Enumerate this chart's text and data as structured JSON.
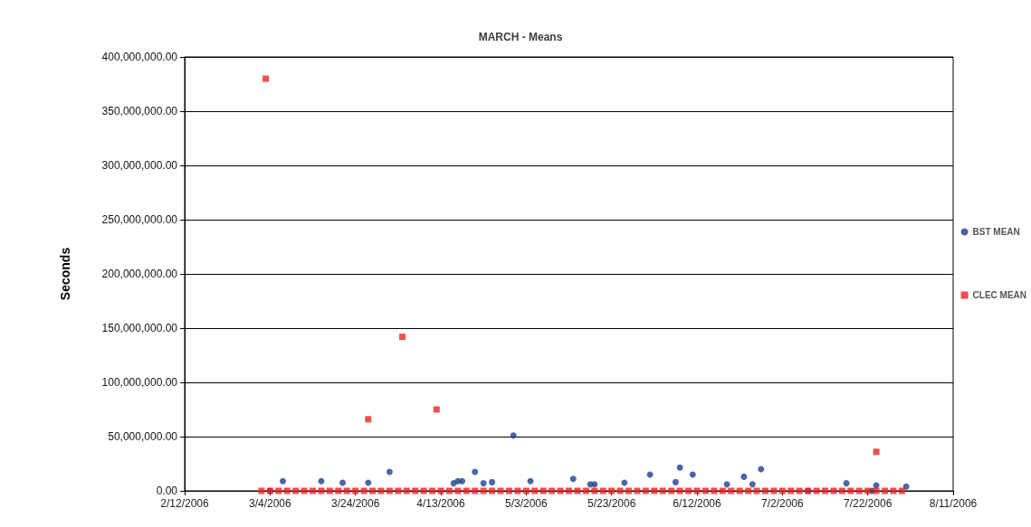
{
  "chart_data": {
    "type": "scatter",
    "title": "MARCH - Means",
    "ylabel": "Seconds",
    "xlim": [
      "2006-02-12",
      "2006-08-11"
    ],
    "xticks": [
      {
        "value": "2006-02-12",
        "label": "2/12/2006"
      },
      {
        "value": "2006-03-04",
        "label": "3/4/2006"
      },
      {
        "value": "2006-03-24",
        "label": "3/24/2006"
      },
      {
        "value": "2006-04-13",
        "label": "4/13/2006"
      },
      {
        "value": "2006-05-03",
        "label": "5/3/2006"
      },
      {
        "value": "2006-05-23",
        "label": "5/23/2006"
      },
      {
        "value": "2006-06-12",
        "label": "6/12/2006"
      },
      {
        "value": "2006-07-02",
        "label": "7/2/2006"
      },
      {
        "value": "2006-07-22",
        "label": "7/22/2006"
      },
      {
        "value": "2006-08-11",
        "label": "8/11/2006"
      }
    ],
    "ylim": [
      0,
      400000000
    ],
    "yticks": [
      {
        "value": 0,
        "label": "0.00"
      },
      {
        "value": 50000000,
        "label": "50,000,000.00"
      },
      {
        "value": 100000000,
        "label": "100,000,000.00"
      },
      {
        "value": 150000000,
        "label": "150,000,000.00"
      },
      {
        "value": 200000000,
        "label": "200,000,000.00"
      },
      {
        "value": 250000000,
        "label": "250,000,000.00"
      },
      {
        "value": 300000000,
        "label": "300,000,000.00"
      },
      {
        "value": 350000000,
        "label": "350,000,000.00"
      },
      {
        "value": 400000000,
        "label": "400,000,000.00"
      }
    ],
    "grid": "y",
    "legend": "right",
    "series": [
      {
        "name": "BST MEAN",
        "color": "#1f3f8f",
        "marker": "circle",
        "x": [
          "2006-03-04",
          "2006-03-07",
          "2006-03-16",
          "2006-03-21",
          "2006-03-27",
          "2006-04-01",
          "2006-04-16",
          "2006-04-17",
          "2006-04-18",
          "2006-04-21",
          "2006-04-23",
          "2006-04-25",
          "2006-04-30",
          "2006-05-04",
          "2006-05-14",
          "2006-05-18",
          "2006-05-19",
          "2006-05-26",
          "2006-06-01",
          "2006-06-07",
          "2006-06-08",
          "2006-06-11",
          "2006-06-19",
          "2006-06-23",
          "2006-06-25",
          "2006-06-27",
          "2006-07-08",
          "2006-07-17",
          "2006-07-23",
          "2006-07-24",
          "2006-07-31"
        ],
        "values": [
          0,
          9000000,
          9000000,
          7500000,
          7500000,
          17500000,
          7000000,
          9000000,
          9000000,
          17500000,
          7000000,
          8000000,
          51000000,
          9000000,
          11000000,
          6000000,
          6000000,
          7500000,
          15000000,
          8000000,
          21500000,
          15000000,
          6000000,
          13000000,
          6000000,
          20000000,
          0,
          7000000,
          0,
          5000000,
          4000000
        ]
      },
      {
        "name": "CLEC MEAN",
        "color": "#ee2222",
        "marker": "square",
        "x": [
          "2006-03-02",
          "2006-03-03",
          "2006-03-04",
          "2006-03-06",
          "2006-03-08",
          "2006-03-10",
          "2006-03-12",
          "2006-03-14",
          "2006-03-16",
          "2006-03-18",
          "2006-03-20",
          "2006-03-22",
          "2006-03-24",
          "2006-03-26",
          "2006-03-27",
          "2006-03-28",
          "2006-03-30",
          "2006-04-01",
          "2006-04-03",
          "2006-04-04",
          "2006-04-05",
          "2006-04-07",
          "2006-04-09",
          "2006-04-11",
          "2006-04-12",
          "2006-04-13",
          "2006-04-15",
          "2006-04-17",
          "2006-04-19",
          "2006-04-21",
          "2006-04-23",
          "2006-04-25",
          "2006-04-27",
          "2006-04-29",
          "2006-05-01",
          "2006-05-03",
          "2006-05-05",
          "2006-05-07",
          "2006-05-09",
          "2006-05-11",
          "2006-05-13",
          "2006-05-15",
          "2006-05-17",
          "2006-05-19",
          "2006-05-21",
          "2006-05-23",
          "2006-05-25",
          "2006-05-27",
          "2006-05-29",
          "2006-05-31",
          "2006-06-02",
          "2006-06-04",
          "2006-06-06",
          "2006-06-08",
          "2006-06-10",
          "2006-06-12",
          "2006-06-14",
          "2006-06-16",
          "2006-06-18",
          "2006-06-20",
          "2006-06-22",
          "2006-06-24",
          "2006-06-26",
          "2006-06-28",
          "2006-06-30",
          "2006-07-02",
          "2006-07-04",
          "2006-07-06",
          "2006-07-08",
          "2006-07-10",
          "2006-07-12",
          "2006-07-14",
          "2006-07-16",
          "2006-07-18",
          "2006-07-20",
          "2006-07-22",
          "2006-07-24",
          "2006-07-24",
          "2006-07-26",
          "2006-07-28",
          "2006-07-30"
        ],
        "values": [
          0,
          380000000,
          0,
          0,
          0,
          0,
          0,
          0,
          0,
          0,
          0,
          0,
          0,
          0,
          66000000,
          0,
          0,
          0,
          0,
          142000000,
          0,
          0,
          0,
          0,
          75000000,
          0,
          0,
          0,
          0,
          0,
          0,
          0,
          0,
          0,
          0,
          0,
          0,
          0,
          0,
          0,
          0,
          0,
          0,
          0,
          0,
          0,
          0,
          0,
          0,
          0,
          0,
          0,
          0,
          0,
          0,
          0,
          0,
          0,
          0,
          0,
          0,
          0,
          0,
          0,
          0,
          0,
          0,
          0,
          0,
          0,
          0,
          0,
          0,
          0,
          0,
          0,
          0,
          36000000,
          0,
          0,
          0
        ]
      }
    ]
  }
}
